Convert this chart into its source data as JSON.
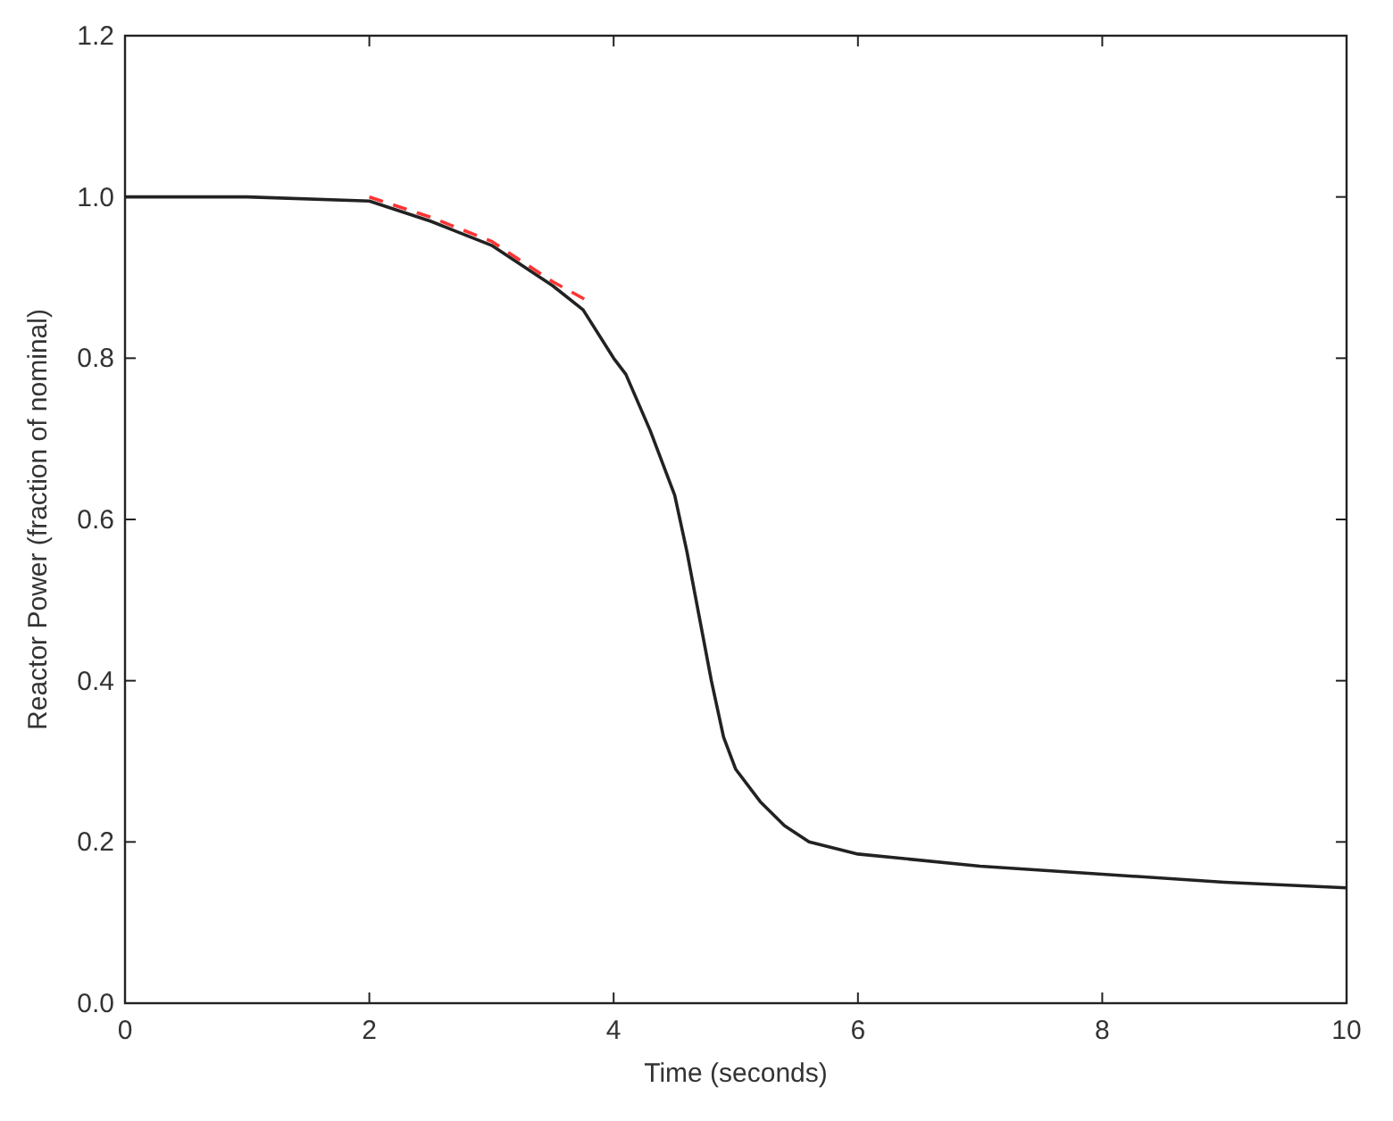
{
  "chart_data": {
    "type": "line",
    "xlabel": "Time (seconds)",
    "ylabel": "Reactor Power (fraction of nominal)",
    "xlim": [
      0,
      10
    ],
    "ylim": [
      0,
      1.2
    ],
    "xticks": [
      0,
      2,
      4,
      6,
      8,
      10
    ],
    "yticks": [
      {
        "value": 0,
        "label": "0.0"
      },
      {
        "value": 0.2,
        "label": "0.2"
      },
      {
        "value": 0.4,
        "label": "0.4"
      },
      {
        "value": 0.6,
        "label": "0.6"
      },
      {
        "value": 0.8,
        "label": "0.8"
      },
      {
        "value": 1,
        "label": "1.0"
      },
      {
        "value": 1.2,
        "label": "1.2"
      }
    ],
    "grid": false,
    "series": [
      {
        "color": "#222222",
        "line_style": "solid",
        "x": [
          0,
          1,
          2,
          2.5,
          3,
          3.5,
          3.75,
          4,
          4.1,
          4.3,
          4.5,
          4.6,
          4.7,
          4.8,
          4.9,
          5,
          5.2,
          5.4,
          5.6,
          6,
          7,
          8,
          9,
          10
        ],
        "values": [
          1.0,
          1.0,
          0.995,
          0.97,
          0.94,
          0.89,
          0.86,
          0.8,
          0.78,
          0.71,
          0.63,
          0.56,
          0.48,
          0.4,
          0.33,
          0.29,
          0.25,
          0.22,
          0.2,
          0.185,
          0.17,
          0.16,
          0.15,
          0.143
        ]
      },
      {
        "color": "#ff3333",
        "line_style": "dashed",
        "x": [
          2,
          2.5,
          3,
          3.5,
          3.8
        ],
        "values": [
          1.0,
          0.975,
          0.945,
          0.895,
          0.87
        ]
      }
    ]
  }
}
